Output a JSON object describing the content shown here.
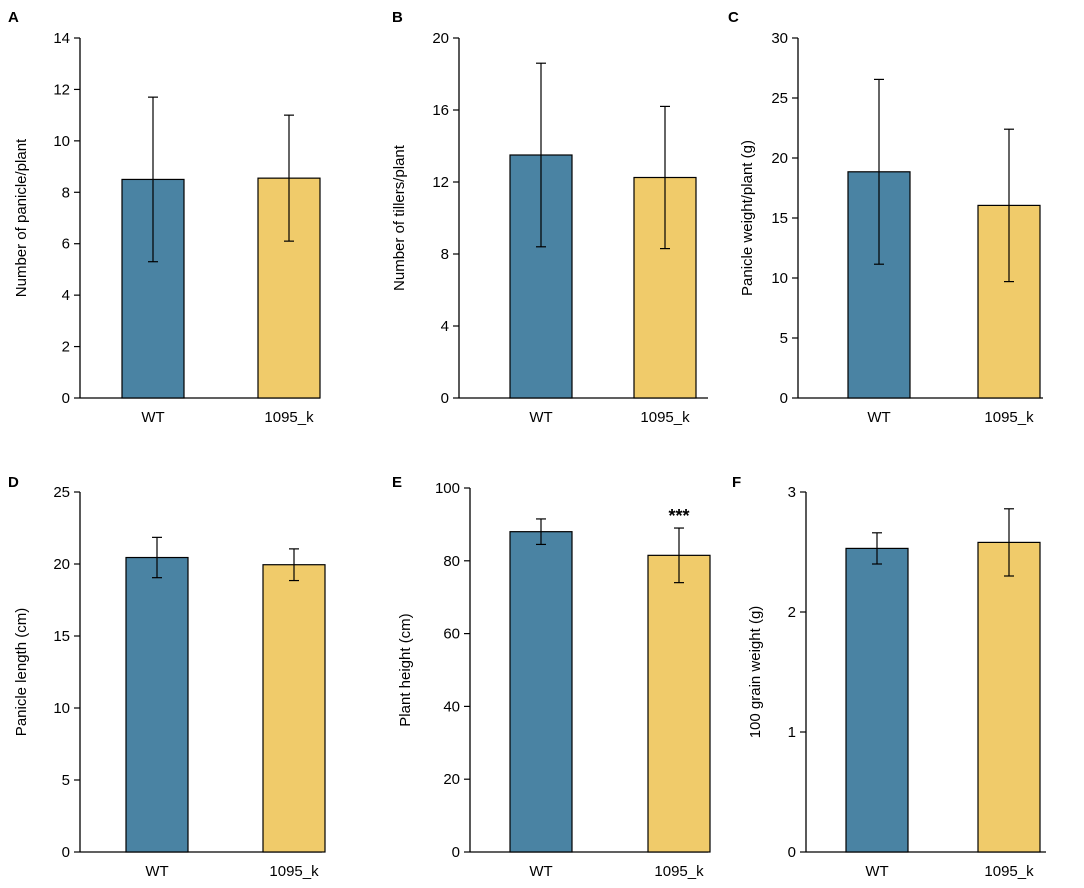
{
  "colors": {
    "wt": "#4a83a3",
    "mutant": "#f0cb6a",
    "axis": "#000000"
  },
  "chart_data": [
    {
      "type": "bar",
      "panel": "A",
      "categories": [
        "WT",
        "1095_k"
      ],
      "values": [
        8.5,
        8.55
      ],
      "errors": [
        3.2,
        2.45
      ],
      "ylabel": "Number of panicle/plant",
      "ylim": [
        0,
        14
      ],
      "yticks": [
        0,
        2,
        4,
        6,
        8,
        10,
        12,
        14
      ],
      "tick_labels": [
        "0",
        "2",
        "4",
        "6",
        "8",
        "10",
        "12",
        "14"
      ],
      "annotations": [
        "",
        ""
      ]
    },
    {
      "type": "bar",
      "panel": "B",
      "categories": [
        "WT",
        "1095_k"
      ],
      "values": [
        13.5,
        12.25
      ],
      "errors": [
        5.1,
        3.95
      ],
      "ylabel": "Number of tillers/plant",
      "ylim": [
        0,
        20
      ],
      "yticks": [
        0,
        4,
        8,
        12,
        16,
        20
      ],
      "tick_labels": [
        "0",
        "4",
        "8",
        "12",
        "16",
        "20"
      ],
      "annotations": [
        "",
        ""
      ]
    },
    {
      "type": "bar",
      "panel": "C",
      "categories": [
        "WT",
        "1095_k"
      ],
      "values": [
        18.85,
        16.05
      ],
      "errors": [
        7.7,
        6.35
      ],
      "ylabel": "Panicle weight/plant (g)",
      "ylim": [
        0,
        30
      ],
      "yticks": [
        0,
        5,
        10,
        15,
        20,
        25,
        30
      ],
      "tick_labels": [
        "0",
        "5",
        "10",
        "15",
        "20",
        "25",
        "30"
      ],
      "annotations": [
        "",
        ""
      ]
    },
    {
      "type": "bar",
      "panel": "D",
      "categories": [
        "WT",
        "1095_k"
      ],
      "values": [
        20.45,
        19.95
      ],
      "errors": [
        1.4,
        1.1
      ],
      "ylabel": "Panicle length (cm)",
      "ylim": [
        0,
        25
      ],
      "yticks": [
        0,
        5,
        10,
        15,
        20,
        25
      ],
      "tick_labels": [
        "0",
        "5",
        "10",
        "15",
        "20",
        "25"
      ],
      "annotations": [
        "",
        ""
      ]
    },
    {
      "type": "bar",
      "panel": "E",
      "categories": [
        "WT",
        "1095_k"
      ],
      "values": [
        88.0,
        81.5
      ],
      "errors": [
        3.5,
        7.5
      ],
      "ylabel": "Plant height (cm)",
      "ylim": [
        0,
        100
      ],
      "yticks": [
        0,
        20,
        40,
        60,
        80,
        100
      ],
      "tick_labels": [
        "0",
        "20",
        "40",
        "60",
        "80",
        "100"
      ],
      "annotations": [
        "",
        "***"
      ]
    },
    {
      "type": "bar",
      "panel": "F",
      "categories": [
        "WT",
        "1095_k"
      ],
      "values": [
        2.53,
        2.58
      ],
      "errors": [
        0.13,
        0.28
      ],
      "ylabel": "100 grain weight (g)",
      "ylim": [
        0,
        3
      ],
      "yticks": [
        0,
        1,
        2,
        3
      ],
      "tick_labels": [
        "0",
        "1",
        "2",
        "3"
      ],
      "annotations": [
        "",
        ""
      ]
    }
  ]
}
